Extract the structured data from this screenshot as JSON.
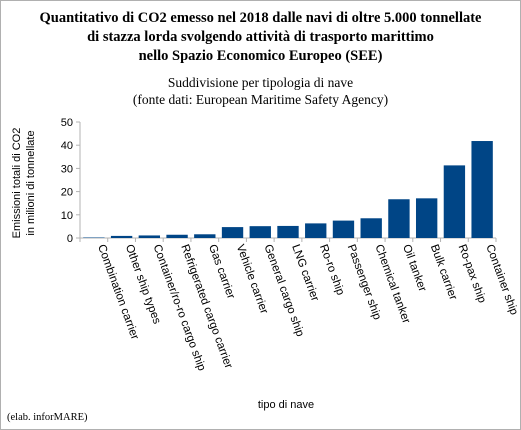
{
  "chart_data": {
    "type": "bar",
    "title_lines": [
      "Quantitativo di CO2 emesso nel 2018 dalle navi di oltre 5.000 tonnellate",
      "di stazza lorda svolgendo attività di trasporto marittimo",
      "nello Spazio Economico Europeo (SEE)"
    ],
    "subtitle_lines": [
      "Suddivisione per tipologia di nave",
      "(fonte dati: European Maritime Safety Agency)"
    ],
    "ylabel_lines": [
      "Emissioni totali di CO2",
      "in milioni di tonnellate"
    ],
    "xlabel": "tipo di nave",
    "categories": [
      "Combination carrier",
      "Other ship types",
      "Container/ro-ro cargo ship",
      "Refrigerated cargo carrier",
      "Gas carrier",
      "Vehicle carrier",
      "General cargo ship",
      "LNG carrier",
      "Ro-ro ship",
      "Passenger ship",
      "Chemical tanker",
      "Oil tanker",
      "Bulk carrier",
      "Ro-pax ship",
      "Container ship"
    ],
    "values": [
      0.1,
      0.9,
      1.1,
      1.4,
      1.6,
      4.7,
      5.1,
      5.2,
      6.3,
      7.5,
      8.5,
      16.7,
      17.1,
      31.3,
      41.8
    ],
    "ylim": [
      0,
      50
    ],
    "yticks": [
      "0",
      "10",
      "20",
      "30",
      "40",
      "50"
    ],
    "grid": false,
    "bar_color": "#004586",
    "footer": "(elab. inforMARE)"
  }
}
